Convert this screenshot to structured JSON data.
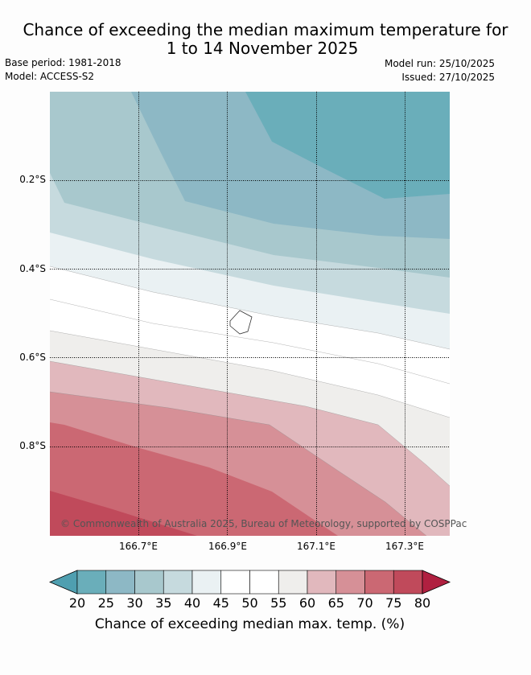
{
  "title_line1": "Chance of exceeding the median maximum temperature for",
  "title_line2": "1 to 14 November 2025",
  "base_period": "Base period: 1981-2018",
  "model": "Model: ACCESS-S2",
  "model_run": "Model run: 25/10/2025",
  "issued": "Issued: 27/10/2025",
  "lat_labels": [
    "0.2°S",
    "0.4°S",
    "0.6°S",
    "0.8°S"
  ],
  "lon_labels": [
    "166.7°E",
    "166.9°E",
    "167.1°E",
    "167.3°E"
  ],
  "copyright": "© Commonwealth of Australia 2025, Bureau of Meteorology, supported by COSPPac",
  "colorbar": {
    "ticks": [
      "20",
      "25",
      "30",
      "35",
      "40",
      "45",
      "50",
      "55",
      "60",
      "65",
      "70",
      "75",
      "80"
    ],
    "colors": [
      "#6aaeba",
      "#8db8c5",
      "#a8c8cd",
      "#c6dade",
      "#eaf1f3",
      "#ffffff",
      "#ffffff",
      "#efeeec",
      "#e1b8bd",
      "#d69097",
      "#cb6873",
      "#c04a5b"
    ],
    "under_color": "#4f9fb0",
    "over_color": "#b02040",
    "label": "Chance of exceeding median max. temp. (%)"
  }
}
